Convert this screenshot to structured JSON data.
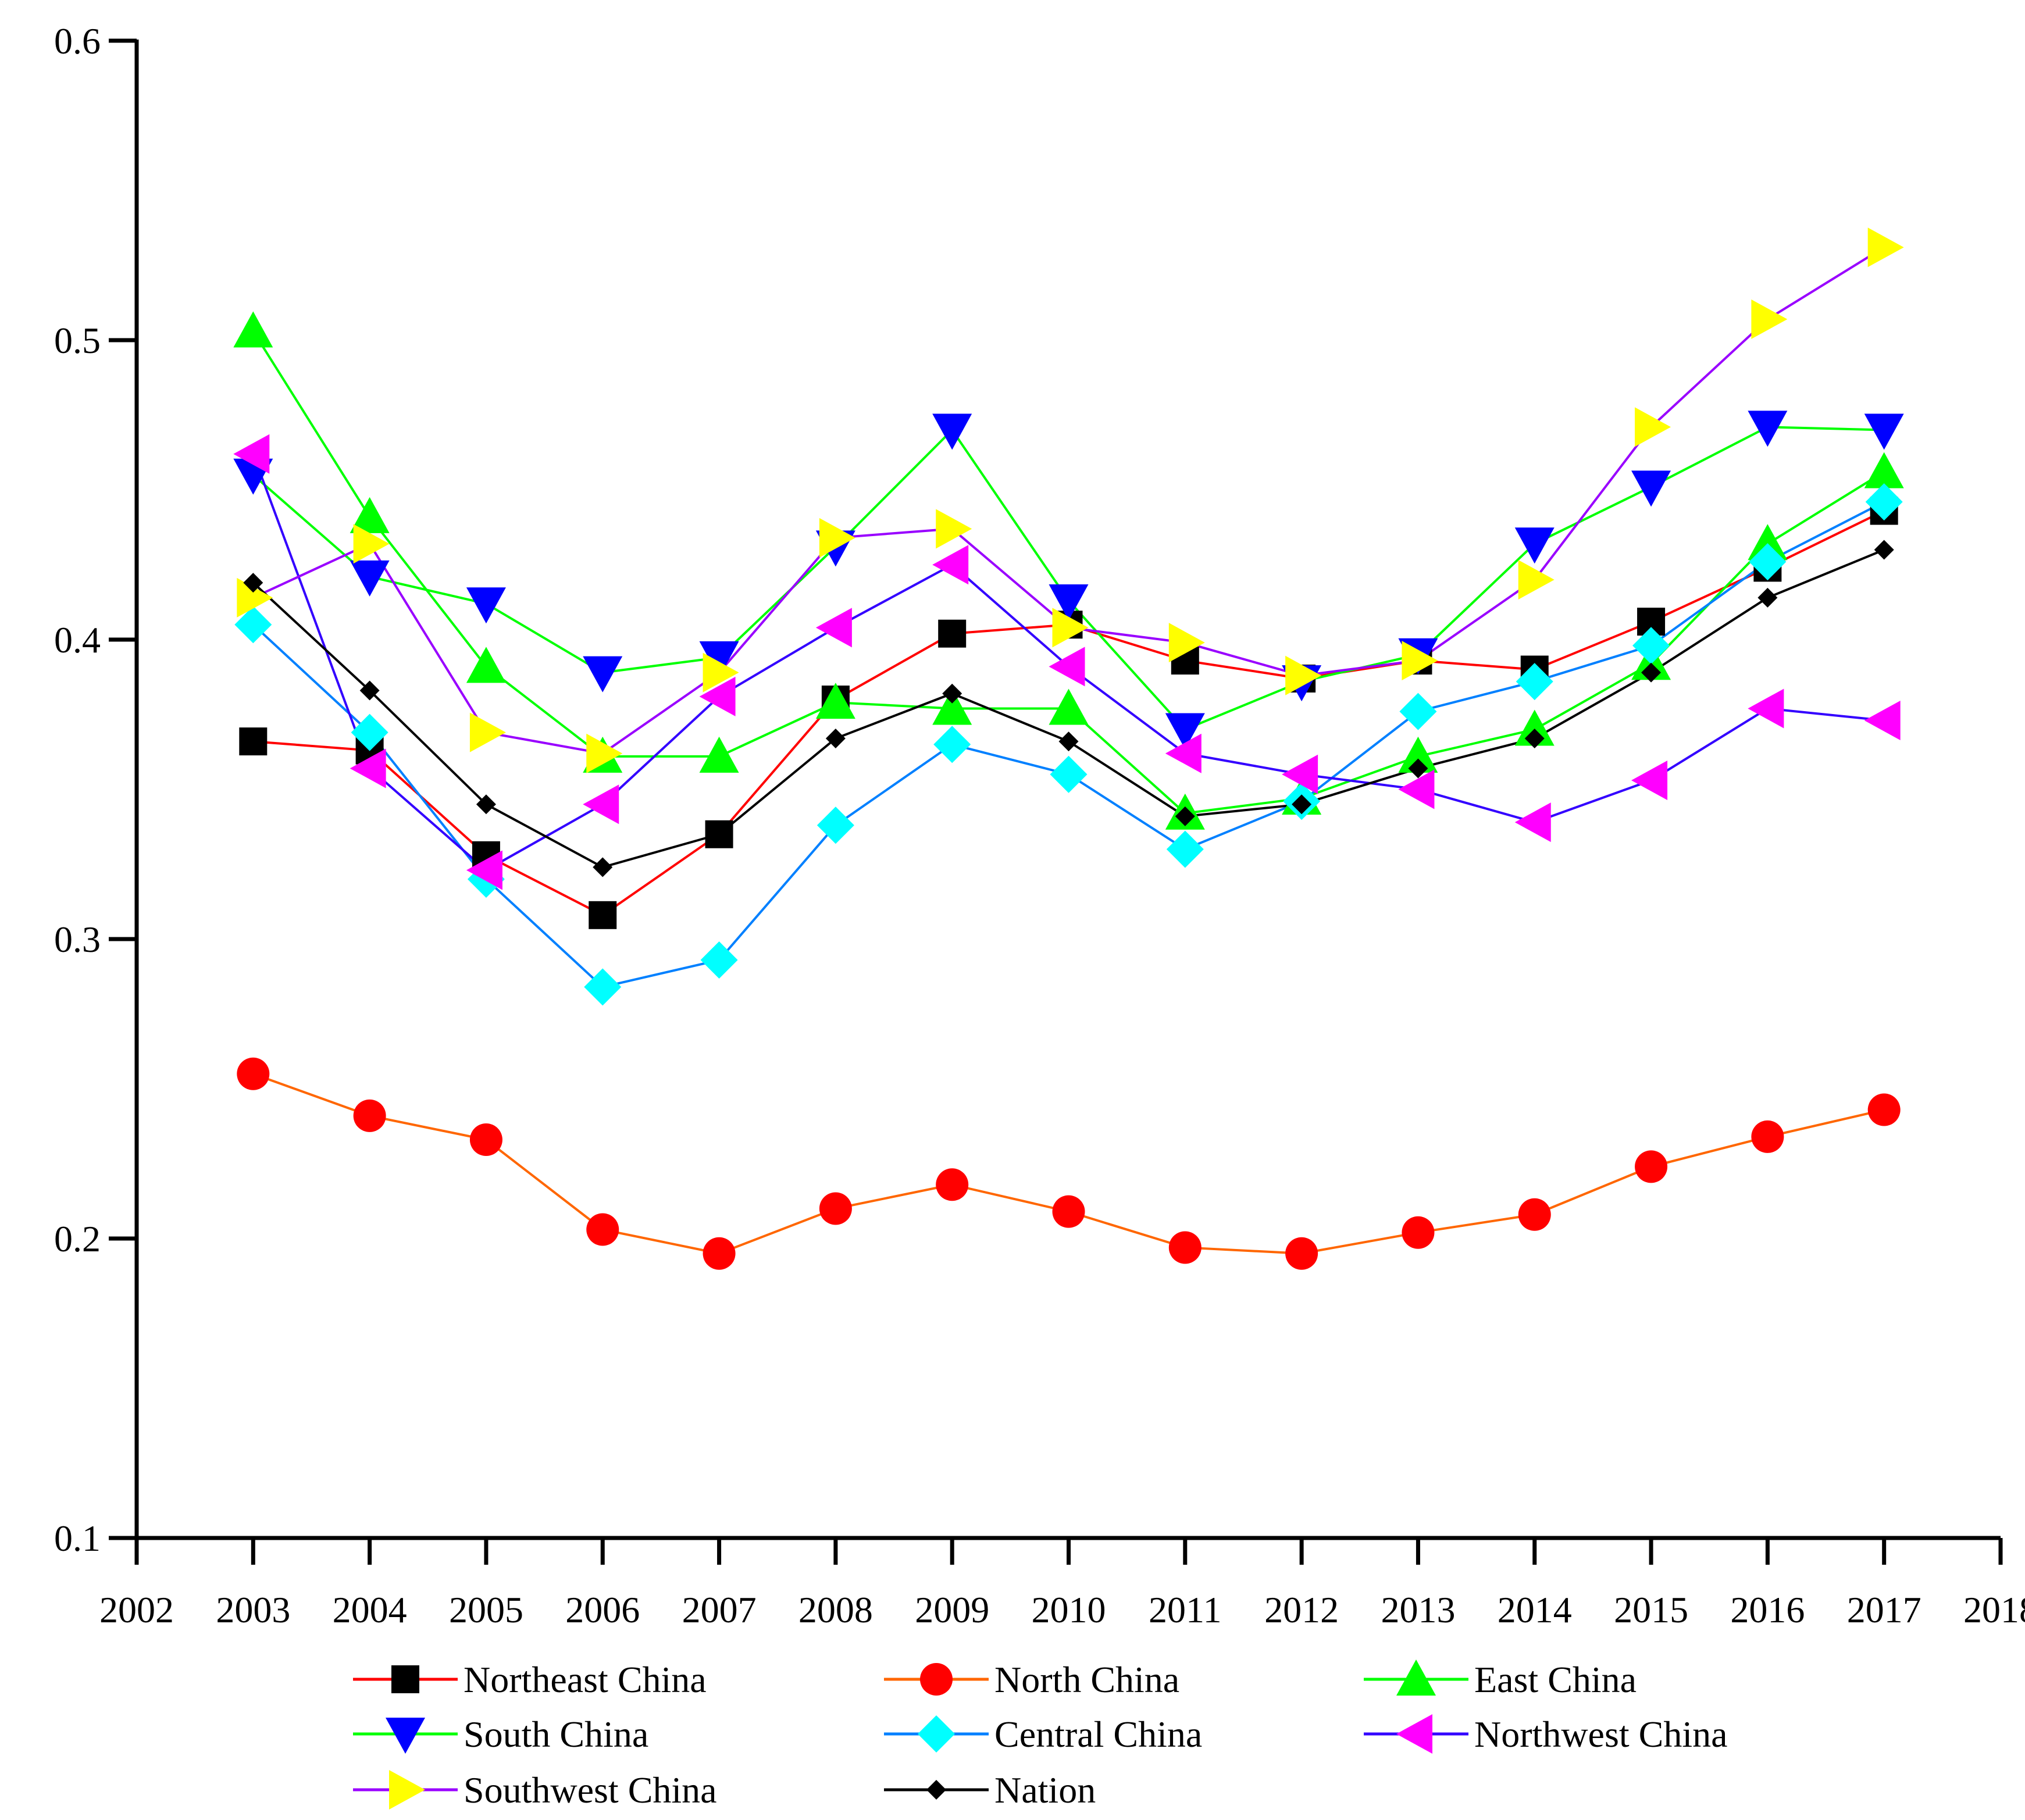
{
  "chart_data": {
    "type": "line",
    "title": "",
    "xlabel": "",
    "ylabel": "",
    "xlim": [
      2002,
      2018
    ],
    "ylim": [
      0.1,
      0.6
    ],
    "x_ticks": [
      2002,
      2003,
      2004,
      2005,
      2006,
      2007,
      2008,
      2009,
      2010,
      2011,
      2012,
      2013,
      2014,
      2015,
      2016,
      2017,
      2018
    ],
    "x_tick_labels": [
      "2002",
      "2003",
      "2004",
      "2005",
      "2006",
      "2007",
      "2008",
      "2009",
      "2010",
      "2011",
      "2012",
      "2013",
      "2014",
      "2015",
      "2016",
      "2017",
      "2018"
    ],
    "y_ticks": [
      0.1,
      0.2,
      0.3,
      0.4,
      0.5,
      0.6
    ],
    "y_tick_labels": [
      "0.1",
      "0.2",
      "0.3",
      "0.4",
      "0.5",
      "0.6"
    ],
    "grid": false,
    "legend_position": "bottom",
    "x": [
      2003,
      2004,
      2005,
      2006,
      2007,
      2008,
      2009,
      2010,
      2011,
      2012,
      2013,
      2014,
      2015,
      2016,
      2017
    ],
    "series": [
      {
        "name": "Northeast China",
        "line_color": "#ff0000",
        "marker": "square",
        "marker_color": "#000000",
        "values": [
          0.366,
          0.363,
          0.328,
          0.308,
          0.335,
          0.38,
          0.402,
          0.405,
          0.393,
          0.387,
          0.393,
          0.39,
          0.406,
          0.424,
          0.443
        ]
      },
      {
        "name": "North China",
        "line_color": "#ff6600",
        "marker": "circle",
        "marker_color": "#ff0000",
        "values": [
          0.255,
          0.241,
          0.233,
          0.203,
          0.195,
          0.21,
          0.218,
          0.209,
          0.197,
          0.195,
          0.202,
          0.208,
          0.224,
          0.234,
          0.243
        ]
      },
      {
        "name": "East China",
        "line_color": "#00ff00",
        "marker": "triangle-up",
        "marker_color": "#00ff00",
        "values": [
          0.503,
          0.441,
          0.391,
          0.361,
          0.361,
          0.379,
          0.377,
          0.377,
          0.342,
          0.347,
          0.361,
          0.37,
          0.392,
          0.432,
          0.456
        ]
      },
      {
        "name": "South China",
        "line_color": "#00ff00",
        "marker": "triangle-down",
        "marker_color": "#0000ff",
        "values": [
          0.455,
          0.421,
          0.412,
          0.389,
          0.394,
          0.431,
          0.47,
          0.413,
          0.37,
          0.386,
          0.395,
          0.432,
          0.451,
          0.471,
          0.47
        ]
      },
      {
        "name": "Central China",
        "line_color": "#0080ff",
        "marker": "diamond",
        "marker_color": "#00ffff",
        "values": [
          0.405,
          0.369,
          0.32,
          0.284,
          0.293,
          0.338,
          0.365,
          0.355,
          0.33,
          0.346,
          0.376,
          0.386,
          0.398,
          0.426,
          0.446
        ]
      },
      {
        "name": "Northwest China",
        "line_color": "#3300ff",
        "marker": "triangle-left",
        "marker_color": "#ff00ff",
        "values": [
          0.462,
          0.357,
          0.323,
          0.345,
          0.381,
          0.404,
          0.425,
          0.391,
          0.362,
          0.355,
          0.35,
          0.339,
          0.353,
          0.377,
          0.373
        ]
      },
      {
        "name": "Southwest China",
        "line_color": "#9900ff",
        "marker": "triangle-right",
        "marker_color": "#ffff00",
        "values": [
          0.414,
          0.432,
          0.369,
          0.362,
          0.389,
          0.434,
          0.437,
          0.404,
          0.399,
          0.388,
          0.393,
          0.42,
          0.471,
          0.507,
          0.531
        ]
      },
      {
        "name": "Nation",
        "line_color": "#000000",
        "marker": "small-diamond",
        "marker_color": "#000000",
        "values": [
          0.419,
          0.383,
          0.345,
          0.324,
          0.335,
          0.367,
          0.382,
          0.366,
          0.341,
          0.345,
          0.357,
          0.367,
          0.389,
          0.414,
          0.43
        ]
      }
    ]
  }
}
